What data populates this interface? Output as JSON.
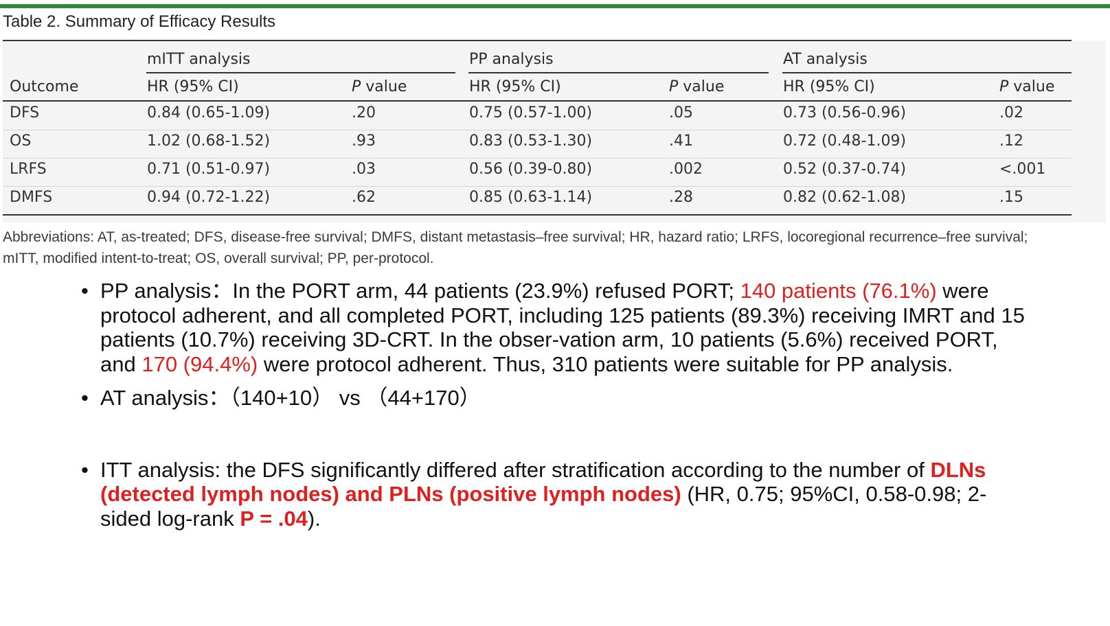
{
  "table": {
    "title": "Table 2. Summary of Efficacy Results",
    "groups": [
      "mITT analysis",
      "PP analysis",
      "AT analysis"
    ],
    "outcome_header": "Outcome",
    "hr_header": "HR (95% CI)",
    "p_header_italic": "P",
    "p_header_rest": " value",
    "rows": [
      {
        "outcome": "DFS",
        "mitt_hr": "0.84 (0.65-1.09)",
        "mitt_p": ".20",
        "pp_hr": "0.75 (0.57-1.00)",
        "pp_p": ".05",
        "at_hr": "0.73 (0.56-0.96)",
        "at_p": ".02"
      },
      {
        "outcome": "OS",
        "mitt_hr": "1.02 (0.68-1.52)",
        "mitt_p": ".93",
        "pp_hr": "0.83 (0.53-1.30)",
        "pp_p": ".41",
        "at_hr": "0.72 (0.48-1.09)",
        "at_p": ".12"
      },
      {
        "outcome": "LRFS",
        "mitt_hr": "0.71 (0.51-0.97)",
        "mitt_p": ".03",
        "pp_hr": "0.56 (0.39-0.80)",
        "pp_p": ".002",
        "at_hr": "0.52 (0.37-0.74)",
        "at_p": "<.001"
      },
      {
        "outcome": "DMFS",
        "mitt_hr": "0.94 (0.72-1.22)",
        "mitt_p": ".62",
        "pp_hr": "0.85 (0.63-1.14)",
        "pp_p": ".28",
        "at_hr": "0.82 (0.62-1.08)",
        "at_p": ".15"
      }
    ],
    "abbreviations_line1": "Abbreviations: AT, as-treated; DFS, disease-free survival; DMFS, distant metastasis–free survival; HR, hazard ratio; LRFS, locoregional recurrence–free survival;",
    "abbreviations_line2": "mITT, modified intent-to-treat; OS, overall survival; PP, per-protocol."
  },
  "bullets": {
    "bullet_char": "•",
    "pp": {
      "text1": "PP analysis：In the PORT arm, 44 patients (23.9%) refused PORT; ",
      "red1": "140 patients (76.1%)",
      "text2": " were protocol adherent, and all completed PORT, including 125 patients (89.3%) receiving IMRT and 15 patients (10.7%) receiving 3D-CRT. In the obser-vation arm, 10 patients (5.6%) received PORT, and ",
      "red2": "170 (94.4%)",
      "text3": " were protocol adherent. Thus, 310 patients were suitable for PP analysis."
    },
    "at": {
      "text": "AT analysis：（140+10） vs （44+170）"
    },
    "itt": {
      "text1": "ITT analysis: the DFS significantly differed after stratification according to the number of ",
      "red_bold1": "DLNs (detected lymph nodes) and PLNs (positive lymph nodes)",
      "text2": " (HR, 0.75; 95%CI, 0.58-0.98; 2-sided log-rank ",
      "red_bold2": "P = .04",
      "text3": ")."
    }
  },
  "colors": {
    "top_bar": "#2e8b3a",
    "highlight": "#e02020"
  }
}
